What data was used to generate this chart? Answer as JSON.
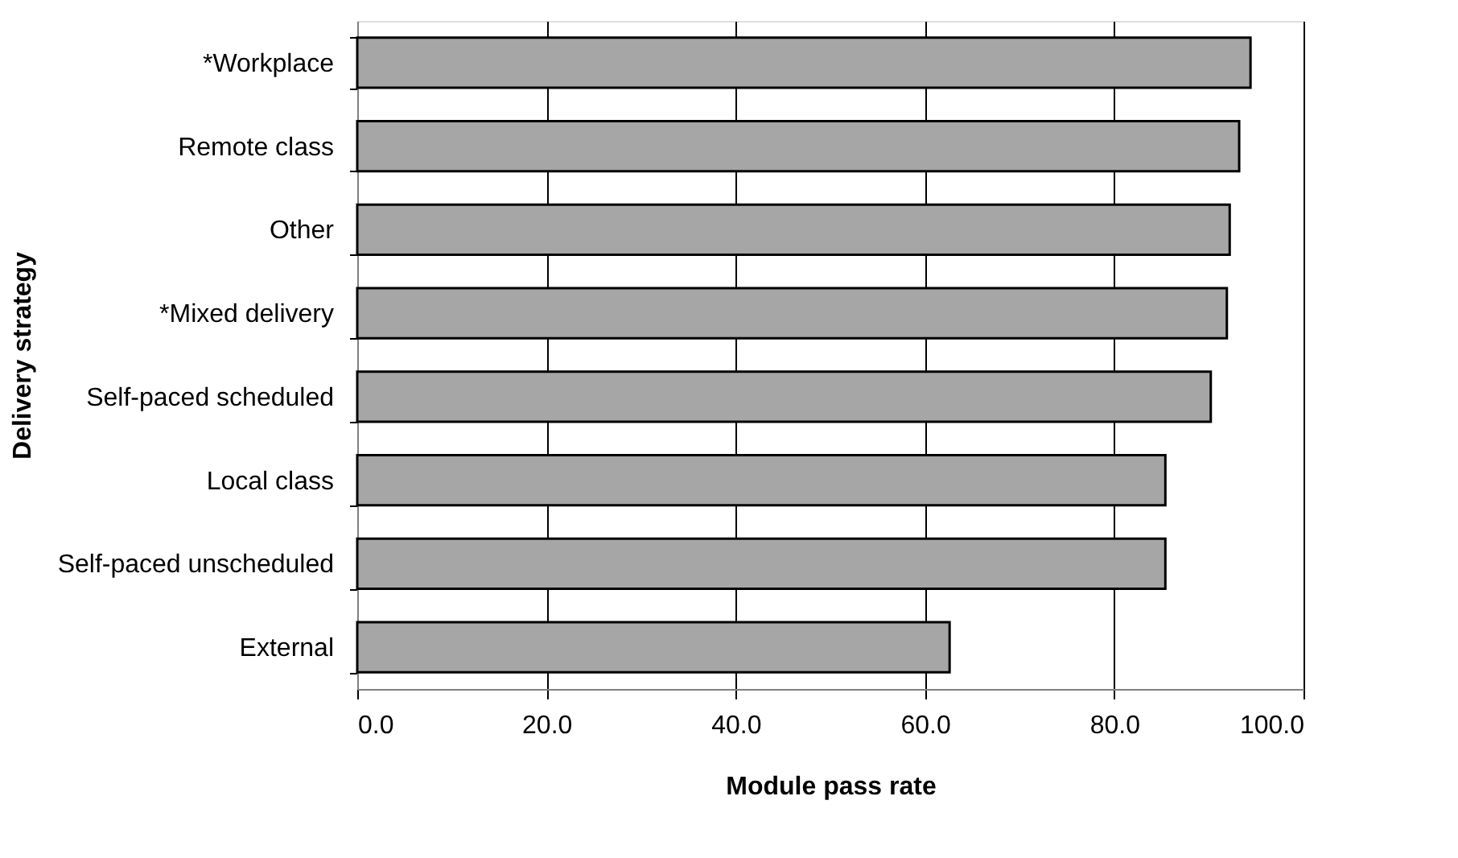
{
  "chart_data": {
    "type": "bar",
    "orientation": "horizontal",
    "xlabel": "Module pass rate",
    "ylabel": "Delivery strategy",
    "categories": [
      "*Workplace",
      "Remote class",
      "Other",
      "*Mixed delivery",
      "Self-paced scheduled",
      "Local class",
      "Self-paced unscheduled",
      "External"
    ],
    "values": [
      94.4,
      93.2,
      92.2,
      91.9,
      90.2,
      85.4,
      85.4,
      62.6
    ],
    "color": "#a6a6a6",
    "xlim": [
      0,
      100
    ],
    "xticks": [
      {
        "value": 0,
        "label": "0.0"
      },
      {
        "value": 20,
        "label": "20.0"
      },
      {
        "value": 40,
        "label": "40.0"
      },
      {
        "value": 60,
        "label": "60.0"
      },
      {
        "value": 80,
        "label": "80.0"
      },
      {
        "value": 100,
        "label": "100.0"
      }
    ],
    "grid": "x"
  }
}
